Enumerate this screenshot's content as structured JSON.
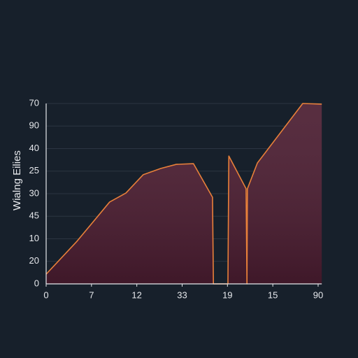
{
  "chart_data": {
    "type": "area",
    "y_label": "Wialng Eilies",
    "x": [
      0,
      0.68,
      1.4,
      1.76,
      2.14,
      2.53,
      2.87,
      3.25,
      3.67,
      3.69,
      4.01,
      4.03,
      4.41,
      4.43,
      4.44,
      4.66,
      5.66,
      6.08
    ],
    "values": [
      0.43,
      1.89,
      3.63,
      4.03,
      4.84,
      5.12,
      5.3,
      5.33,
      3.84,
      0,
      0,
      5.67,
      4.22,
      0,
      4.22,
      5.36,
      8.0,
      7.97
    ],
    "color": "#e8803a",
    "fill": "#4a1c30",
    "xlim": [
      0,
      6.08
    ],
    "ylim": [
      0,
      8
    ],
    "xticks": [
      {
        "value": 0,
        "label": "0"
      },
      {
        "value": 1,
        "label": "7"
      },
      {
        "value": 2,
        "label": "12"
      },
      {
        "value": 3,
        "label": "33"
      },
      {
        "value": 4,
        "label": "19"
      },
      {
        "value": 5,
        "label": "15"
      },
      {
        "value": 6,
        "label": "90"
      }
    ],
    "yticks": [
      {
        "value": 0,
        "label": "0"
      },
      {
        "value": 1,
        "label": "20"
      },
      {
        "value": 2,
        "label": "10"
      },
      {
        "value": 3,
        "label": "45"
      },
      {
        "value": 4,
        "label": "30"
      },
      {
        "value": 5,
        "label": "25"
      },
      {
        "value": 6,
        "label": "40"
      },
      {
        "value": 7,
        "label": "90"
      },
      {
        "value": 8,
        "label": "70"
      }
    ],
    "grid": true
  }
}
